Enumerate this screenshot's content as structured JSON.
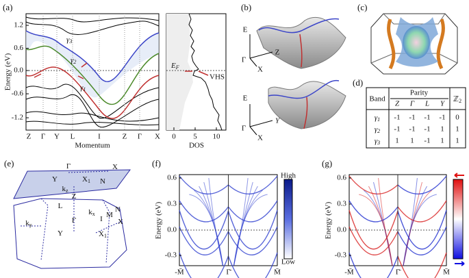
{
  "panels": {
    "a": "(a)",
    "b": "(b)",
    "c": "(c)",
    "d": "(d)",
    "e": "(e)",
    "f": "(f)",
    "g": "(g)"
  },
  "band_structure": {
    "y_label": "Energy (eV)",
    "x_label": "Momentum",
    "yticks": [
      "1.2",
      "0.6",
      "0.0",
      "-0.6",
      "-1.2"
    ],
    "kpoints": [
      "Z",
      "Γ",
      "Y",
      "L",
      "I",
      "Z",
      "Γ",
      "X"
    ],
    "bands": [
      {
        "base": "γ",
        "sub": "3"
      },
      {
        "base": "γ",
        "sub": "2"
      },
      {
        "base": "γ",
        "sub": "1"
      }
    ]
  },
  "dos": {
    "x_label": "DOS",
    "xticks": [
      "0",
      "5",
      "10"
    ],
    "fermi": {
      "base": "E",
      "sub": "F"
    },
    "vhs": "VHS"
  },
  "surfaces": [
    {
      "energy": "E",
      "origin": "Γ",
      "k1": "Z",
      "k2": "X"
    },
    {
      "energy": "E",
      "origin": "Γ",
      "k1": "Y",
      "k2": "X"
    }
  ],
  "parity_table": {
    "band_header": "Band",
    "parity_header": "Parity",
    "z2_header": {
      "base": "ℤ",
      "sub": "2"
    },
    "points": [
      "Z",
      "Γ",
      "L",
      "Y"
    ],
    "rows": [
      {
        "band": {
          "base": "γ",
          "sub": "1"
        },
        "values": [
          "-1",
          "-1",
          "-1",
          "-1"
        ],
        "z2": "0"
      },
      {
        "band": {
          "base": "γ",
          "sub": "2"
        },
        "values": [
          "-1",
          "-1",
          "-1",
          "1"
        ],
        "z2": "1"
      },
      {
        "band": {
          "base": "γ",
          "sub": "3"
        },
        "values": [
          "1",
          "1",
          "-1",
          "1"
        ],
        "z2": "1"
      }
    ]
  },
  "brillouin_zone": {
    "labels": [
      {
        "base": "Γ"
      },
      {
        "base": "X"
      },
      {
        "base": "Y"
      },
      {
        "base": "X",
        "sub": "1"
      },
      {
        "base": "N"
      },
      {
        "base": "k",
        "sub": "z"
      },
      {
        "base": "Z"
      },
      {
        "base": "L"
      },
      {
        "base": "k",
        "sub": "x"
      },
      {
        "base": "I"
      },
      {
        "base": "M"
      },
      {
        "base": "N"
      },
      {
        "base": "X"
      },
      {
        "base": "Γ"
      },
      {
        "base": "Y"
      },
      {
        "base": "X",
        "sub": "1"
      },
      {
        "base": "k",
        "sub": "y"
      }
    ]
  },
  "spectra": [
    {
      "y_label": "Energy (eV)",
      "yticks": [
        "0.6",
        "0.3",
        "0.0",
        "-0.3"
      ],
      "kpath": [
        "-M̄",
        "Γ̄",
        "M̄"
      ],
      "colorbar": [
        "High",
        "Low"
      ]
    },
    {
      "y_label": "Energy (eV)",
      "yticks": [
        "0.6",
        "0.3",
        "0.0",
        "-0.3"
      ],
      "kpath": [
        "-M̄",
        "Γ̄",
        "M̄"
      ]
    }
  ]
}
